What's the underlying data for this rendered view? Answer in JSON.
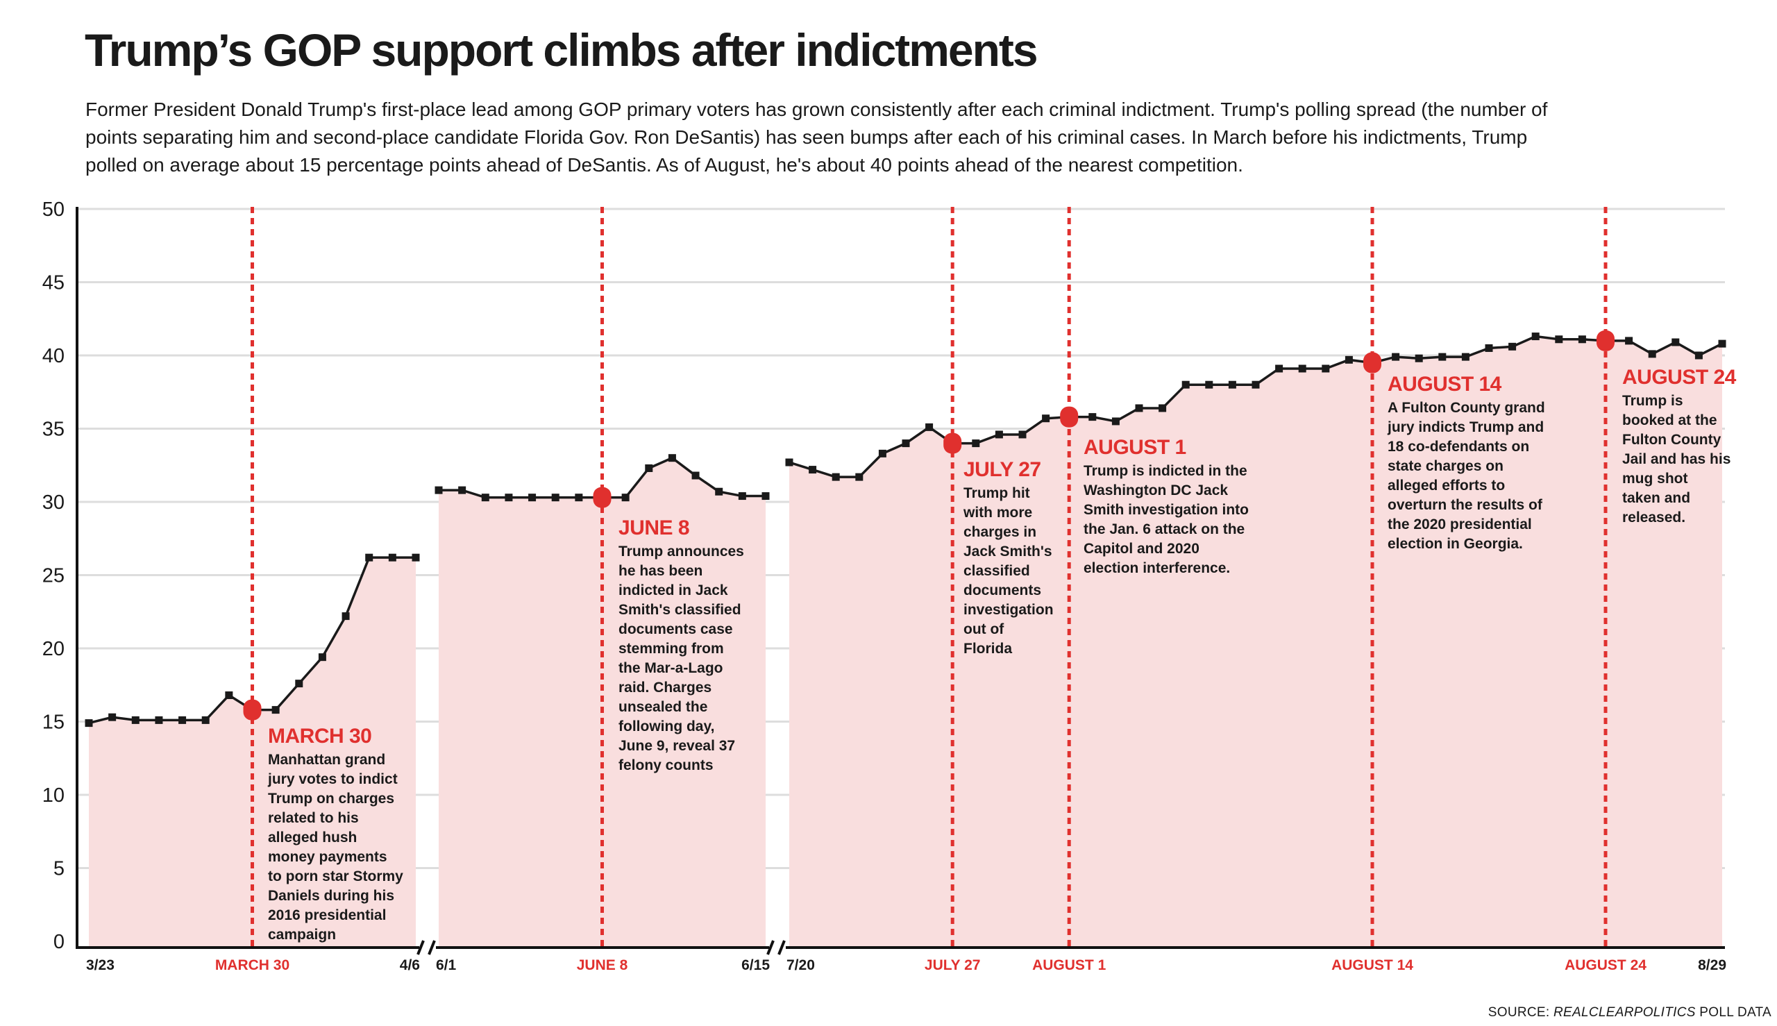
{
  "title": "Trump’s GOP support climbs after indictments",
  "subtitle_lines": [
    "Former President Donald Trump's first-place lead among GOP primary voters has grown consistently after each criminal indictment. Trump's polling spread (the number of",
    "points separating him and second-place candidate Florida Gov. Ron DeSantis) has seen bumps after each of his criminal cases. In March before his indictments, Trump",
    "polled on average about 15 percentage points ahead of DeSantis. As of August, he's about 40 points ahead of the nearest competition."
  ],
  "source": {
    "prefix": "SOURCE: ",
    "name": "REALCLEARPOLITICS",
    "suffix": " POLL DATA"
  },
  "colors": {
    "accent": "#e0302e",
    "fill": "#f9dede",
    "line": "#1a1a1a",
    "grid": "#dddddd"
  },
  "chart_data": {
    "type": "line",
    "ylim": [
      0,
      50
    ],
    "yticks": [
      0,
      5,
      10,
      15,
      20,
      25,
      30,
      35,
      40,
      45,
      50
    ],
    "grid": true,
    "area_fill": true,
    "axis_breaks": [
      "between 4/6 and 6/1",
      "between 6/15 and 7/20"
    ],
    "segments": [
      {
        "start": "3/23",
        "end": "4/6",
        "values": [
          14.9,
          15.3,
          15.1,
          15.1,
          15.1,
          15.1,
          16.8,
          15.8,
          15.8,
          17.6,
          19.4,
          22.2,
          26.2,
          26.2,
          26.2
        ]
      },
      {
        "start": "6/1",
        "end": "6/15",
        "values": [
          30.8,
          30.8,
          30.3,
          30.3,
          30.3,
          30.3,
          30.3,
          30.3,
          30.3,
          32.3,
          33.0,
          31.8,
          30.7,
          30.4,
          30.4
        ]
      },
      {
        "start": "7/20",
        "end": "8/29",
        "values": [
          32.7,
          32.2,
          31.7,
          31.7,
          33.3,
          34.0,
          35.1,
          34.0,
          34.0,
          34.6,
          34.6,
          35.7,
          35.8,
          35.8,
          35.5,
          36.4,
          36.4,
          38.0,
          38.0,
          38.0,
          38.0,
          39.1,
          39.1,
          39.1,
          39.7,
          39.5,
          39.9,
          39.8,
          39.9,
          39.9,
          40.5,
          40.6,
          41.3,
          41.1,
          41.1,
          41.0,
          41.0,
          40.1,
          40.9,
          40.0,
          40.8
        ]
      }
    ],
    "xtick_labels": [
      "3/23",
      "4/6",
      "6/1",
      "6/15",
      "7/20",
      "8/29"
    ],
    "events": [
      {
        "segment": 0,
        "day_index": 7,
        "value": 15.8,
        "axis_label": "MARCH 30",
        "heading": "MARCH 30",
        "body": [
          "Manhattan grand",
          "jury votes to indict",
          "Trump on charges",
          "related to his",
          "alleged hush",
          "money payments",
          "to porn star Stormy",
          "Daniels during his",
          "2016 presidential",
          "campaign"
        ]
      },
      {
        "segment": 1,
        "day_index": 7,
        "value": 30.3,
        "axis_label": "JUNE 8",
        "heading": "JUNE 8",
        "body": [
          "Trump announces",
          "he has been",
          "indicted in Jack",
          "Smith's classified",
          "documents case",
          "stemming from",
          "the Mar-a-Lago",
          "raid. Charges",
          "unsealed the",
          "following day,",
          "June 9, reveal 37",
          "felony counts"
        ]
      },
      {
        "segment": 2,
        "day_index": 7,
        "value": 34.0,
        "axis_label": "JULY 27",
        "heading": "JULY 27",
        "body": [
          "Trump hit",
          "with more",
          "charges in",
          "Jack Smith's",
          "classified",
          "documents",
          "investigation",
          "out of",
          "Florida"
        ]
      },
      {
        "segment": 2,
        "day_index": 12,
        "value": 35.8,
        "axis_label": "AUGUST 1",
        "heading": "AUGUST 1",
        "body": [
          "Trump is indicted in the",
          "Washington DC Jack",
          "Smith investigation into",
          "the Jan. 6 attack on the",
          "Capitol and 2020",
          "election interference."
        ]
      },
      {
        "segment": 2,
        "day_index": 25,
        "value": 39.5,
        "axis_label": "AUGUST 14",
        "heading": "AUGUST 14",
        "body": [
          "A Fulton County grand",
          "jury indicts Trump and",
          "18 co-defendants on",
          "state charges on",
          "alleged efforts to",
          "overturn the results of",
          "the 2020 presidential",
          "election in Georgia."
        ]
      },
      {
        "segment": 2,
        "day_index": 35,
        "value": 41.0,
        "axis_label": "AUGUST 24",
        "heading": "AUGUST 24",
        "body": [
          "Trump is",
          "booked at the",
          "Fulton County",
          "Jail and has his",
          "mug shot",
          "taken and",
          "released."
        ]
      }
    ]
  }
}
